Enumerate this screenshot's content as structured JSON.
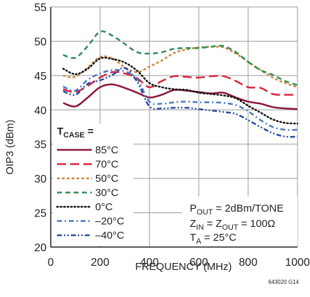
{
  "chart_data": {
    "type": "line",
    "xlabel": "FREQUENCY (MHz)",
    "ylabel": "OIP3 (dBm)",
    "xlim": [
      0,
      1000
    ],
    "ylim": [
      20,
      55
    ],
    "x_ticks": [
      "0",
      "200",
      "400",
      "600",
      "800",
      "1000"
    ],
    "y_ticks": [
      "20",
      "25",
      "30",
      "35",
      "40",
      "45",
      "50",
      "55"
    ],
    "grid": true,
    "legend_title": "T",
    "legend_title_sub": "CASE",
    "legend_title_suffix": " =",
    "series": [
      {
        "name": "85°C",
        "color": "#8b1538",
        "dash": "solid",
        "x": [
          50,
          100,
          150,
          200,
          250,
          300,
          350,
          400,
          450,
          500,
          550,
          600,
          650,
          700,
          750,
          800,
          850,
          900,
          950,
          1000
        ],
        "y": [
          41,
          40.5,
          41.8,
          43.3,
          43.7,
          43.2,
          42.5,
          41.8,
          42.2,
          42.9,
          42.8,
          42.6,
          42.4,
          42.5,
          41.8,
          41.2,
          40.9,
          40.4,
          40.2,
          40.1
        ]
      },
      {
        "name": "70°C",
        "color": "#d7263d",
        "dash": "long",
        "x": [
          50,
          100,
          150,
          200,
          250,
          300,
          350,
          400,
          450,
          500,
          550,
          600,
          650,
          700,
          750,
          800,
          850,
          900,
          950,
          1000
        ],
        "y": [
          43,
          42.6,
          43.5,
          44.7,
          45.5,
          45.3,
          44.6,
          43.3,
          44.2,
          44.9,
          44.8,
          44.7,
          44.9,
          44.9,
          44.2,
          43.3,
          43.2,
          42.3,
          42.2,
          42.2
        ]
      },
      {
        "name": "50°C",
        "color": "#c98a3e",
        "dash": "short",
        "x": [
          50,
          100,
          150,
          200,
          250,
          300,
          350,
          400,
          450,
          500,
          550,
          600,
          650,
          700,
          750,
          800,
          850,
          900,
          950,
          1000
        ],
        "y": [
          45,
          44.8,
          46.2,
          47.7,
          47.5,
          46.2,
          45.5,
          46.3,
          47.2,
          48.3,
          48.8,
          49.1,
          49.2,
          49.1,
          48.2,
          47,
          45.8,
          44.7,
          43.9,
          43.3
        ]
      },
      {
        "name": "30°C",
        "color": "#2e8b57",
        "dash": "medium",
        "x": [
          50,
          100,
          150,
          200,
          250,
          300,
          350,
          400,
          450,
          500,
          550,
          600,
          650,
          700,
          750,
          800,
          850,
          900,
          950,
          1000
        ],
        "y": [
          48,
          47.6,
          49.3,
          51.4,
          50.8,
          49.6,
          48.4,
          48.2,
          48.4,
          48.9,
          49,
          49,
          49.2,
          49.3,
          48.4,
          47,
          45.8,
          45.1,
          44.2,
          43.6
        ]
      },
      {
        "name": "0°C",
        "color": "#111111",
        "dash": "dotted",
        "x": [
          50,
          100,
          150,
          200,
          250,
          300,
          350,
          400,
          450,
          500,
          550,
          600,
          650,
          700,
          750,
          800,
          850,
          900,
          950,
          1000
        ],
        "y": [
          46,
          45.2,
          46,
          47.5,
          47.4,
          46.9,
          45.7,
          43.9,
          43.3,
          43,
          42.9,
          42.5,
          42.3,
          42.1,
          41.7,
          40.6,
          39.6,
          38.6,
          38.1,
          38
        ]
      },
      {
        "name": "–20°C",
        "color": "#4a78c2",
        "dash": "dashdot",
        "x": [
          50,
          100,
          150,
          200,
          250,
          300,
          350,
          400,
          450,
          500,
          550,
          600,
          650,
          700,
          750,
          800,
          850,
          900,
          950,
          1000
        ],
        "y": [
          43.4,
          42.8,
          44.4,
          45.3,
          45.8,
          45.6,
          44.5,
          41.2,
          40.9,
          41.1,
          41.2,
          41.1,
          41.1,
          41,
          40.7,
          39.8,
          38.5,
          37.5,
          37.1,
          37.1
        ]
      },
      {
        "name": "–40°C",
        "color": "#2a4c9e",
        "dash": "dashdotdot",
        "x": [
          50,
          100,
          150,
          200,
          250,
          300,
          350,
          400,
          450,
          500,
          550,
          600,
          650,
          700,
          750,
          800,
          850,
          900,
          950,
          1000
        ],
        "y": [
          42.7,
          42.2,
          43.8,
          44.3,
          45.1,
          46.1,
          44.1,
          40.5,
          40.2,
          40.3,
          40.3,
          40.1,
          39.9,
          39.7,
          39.4,
          38.5,
          37.5,
          36.6,
          36.1,
          36.1
        ]
      }
    ],
    "annotations": {
      "line1_main": "P",
      "line1_sub": "OUT",
      "line1_rest": " = 2dBm/TONE",
      "line2_a": "Z",
      "line2_a_sub": "IN",
      "line2_b": " = Z",
      "line2_b_sub": "OUT",
      "line2_rest": " = 100Ω",
      "line3_main": "T",
      "line3_sub": "A",
      "line3_rest": " = 25°C"
    },
    "figure_code": "643020 G14"
  }
}
